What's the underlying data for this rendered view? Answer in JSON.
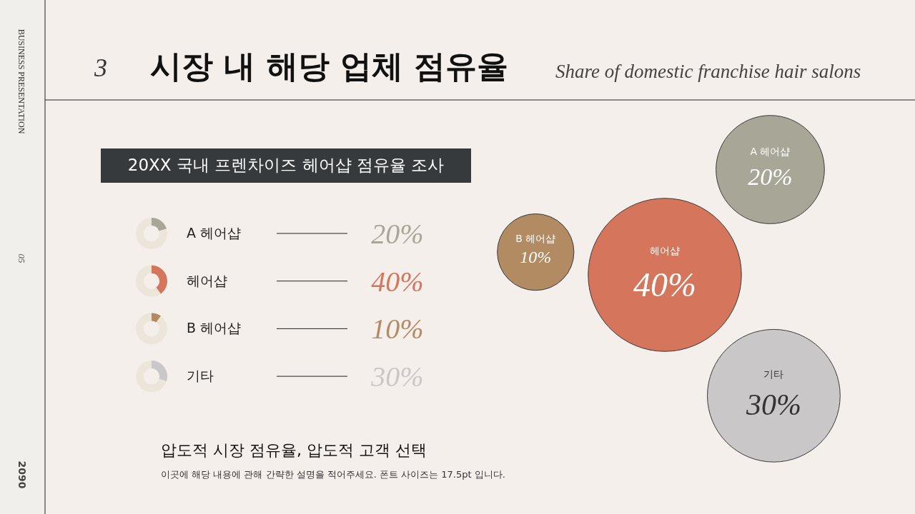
{
  "chart_data": {
    "type": "other",
    "title": "시장 내 해당 업체 점유율",
    "subtitle": "Share of domestic franchise hair salons",
    "categories": [
      "A 헤어샵",
      "헤어샵",
      "B 헤어샵",
      "기타"
    ],
    "values": [
      20,
      40,
      10,
      30
    ],
    "colors": [
      "#a8a797",
      "#d5755c",
      "#b38b63",
      "#c9c7c7"
    ],
    "value_labels": [
      "20%",
      "40%",
      "10%",
      "30%"
    ],
    "annotations": [
      "3",
      "BUSINESS PRESENTATION",
      "05",
      "2090",
      "20XX 국내 프렌차이즈 헤어샵 점유율 조사",
      "압도적 시장 점유율, 압도적 고객 선택",
      "이곳에 해당 내용에 관해 간략한 설명을 적어주세요. 폰트 사이즈는 17.5pt 입니다."
    ]
  }
}
